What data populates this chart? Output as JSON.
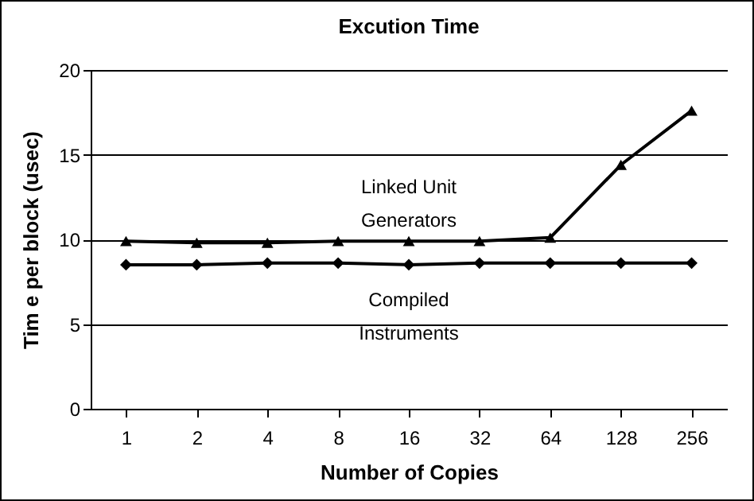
{
  "chart_data": {
    "type": "line",
    "title": "Excution Time",
    "xlabel": "Number of Copies",
    "ylabel": "Tim e per block (usec)",
    "categories": [
      "1",
      "2",
      "4",
      "8",
      "16",
      "32",
      "64",
      "128",
      "256"
    ],
    "series": [
      {
        "name": "Linked Unit Generators",
        "color": "#000000",
        "marker": "triangle",
        "values": [
          9.9,
          9.8,
          9.8,
          9.9,
          9.9,
          9.9,
          10.1,
          14.4,
          17.6
        ]
      },
      {
        "name": "Compiled Instruments",
        "color": "#000000",
        "marker": "diamond",
        "values": [
          8.5,
          8.5,
          8.6,
          8.6,
          8.5,
          8.6,
          8.6,
          8.6,
          8.6
        ]
      }
    ],
    "ylim": [
      0,
      20
    ],
    "yticks": [
      0,
      5,
      10,
      15,
      20
    ],
    "grid": "y",
    "legend": false,
    "line_style": "solid"
  }
}
